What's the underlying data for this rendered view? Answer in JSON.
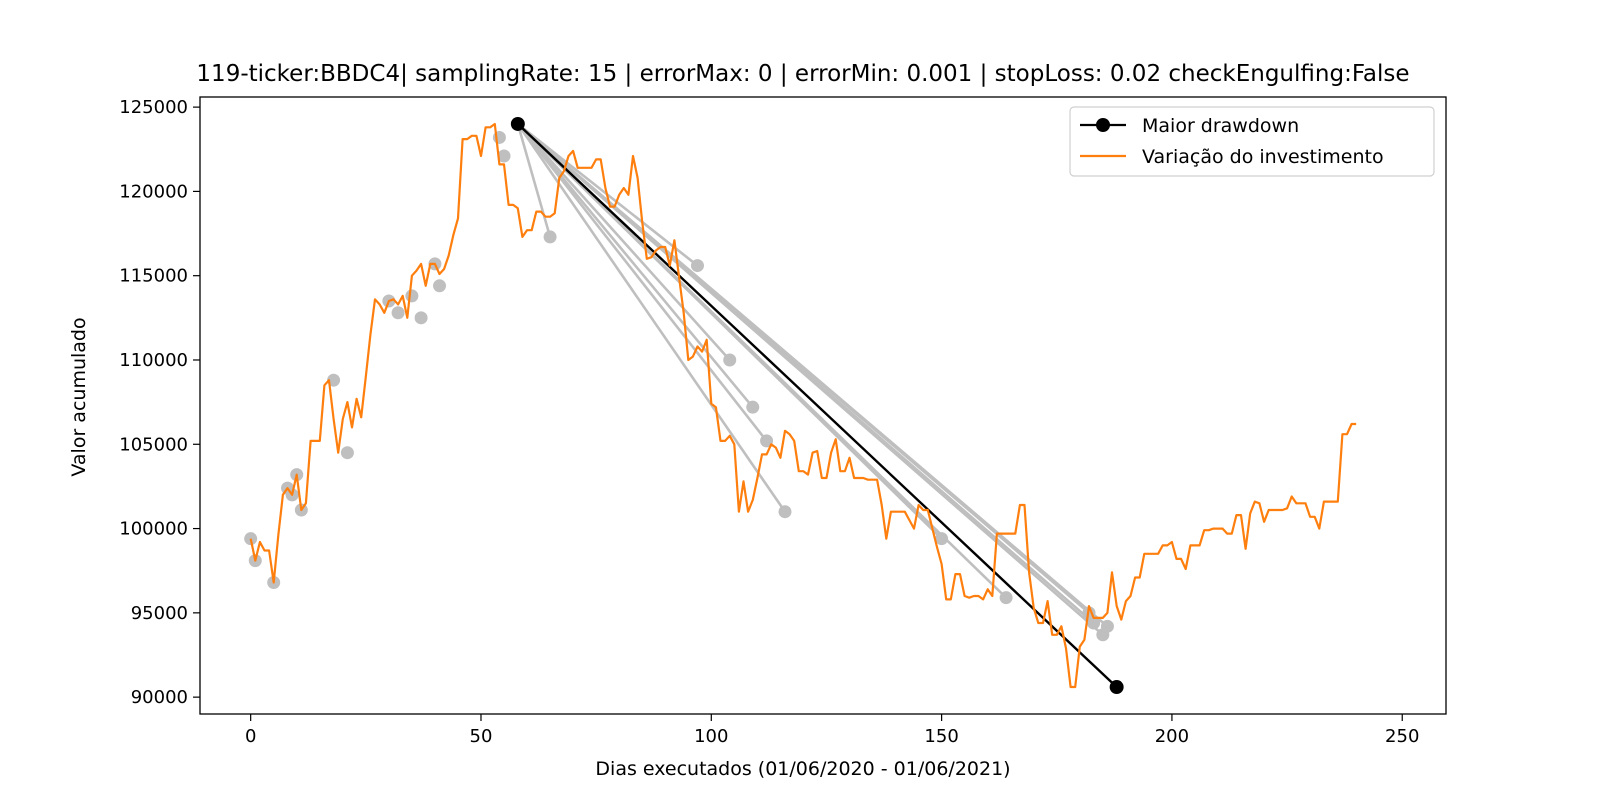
{
  "chart_data": {
    "type": "line",
    "title": "119-ticker:BBDC4| samplingRate: 15 | errorMax: 0 | errorMin: 0.001 | stopLoss: 0.02 checkEngulfing:False",
    "xlabel": "Dias executados (01/06/2020 - 01/06/2021)",
    "ylabel": "Valor acumulado",
    "xlim": [
      -11,
      259.5
    ],
    "ylim": [
      89000,
      125600
    ],
    "xticks": [
      0,
      50,
      100,
      150,
      200,
      250
    ],
    "yticks": [
      90000,
      95000,
      100000,
      105000,
      110000,
      115000,
      120000,
      125000
    ],
    "legend_position": "upper-right",
    "colors": {
      "investment": "#ff7f0e",
      "drawdown": "#000000",
      "candidates": "#bfbfbf"
    },
    "series": [
      {
        "name": "Variação do investimento",
        "points": [
          [
            0,
            99400
          ],
          [
            1,
            98100
          ],
          [
            2,
            99200
          ],
          [
            3,
            98700
          ],
          [
            4,
            98700
          ],
          [
            5,
            96800
          ],
          [
            6,
            99600
          ],
          [
            7,
            102000
          ],
          [
            8,
            102400
          ],
          [
            9,
            102000
          ],
          [
            10,
            103200
          ],
          [
            11,
            101100
          ],
          [
            12,
            101500
          ],
          [
            13,
            105200
          ],
          [
            14,
            105200
          ],
          [
            15,
            105200
          ],
          [
            16,
            108500
          ],
          [
            17,
            108800
          ],
          [
            18,
            106500
          ],
          [
            19,
            104500
          ],
          [
            20,
            106500
          ],
          [
            21,
            107500
          ],
          [
            22,
            106000
          ],
          [
            23,
            107700
          ],
          [
            24,
            106600
          ],
          [
            25,
            109000
          ],
          [
            26,
            111500
          ],
          [
            27,
            113600
          ],
          [
            28,
            113300
          ],
          [
            29,
            112800
          ],
          [
            30,
            113500
          ],
          [
            31,
            113600
          ],
          [
            32,
            113300
          ],
          [
            33,
            113800
          ],
          [
            34,
            112500
          ],
          [
            35,
            115000
          ],
          [
            36,
            115300
          ],
          [
            37,
            115700
          ],
          [
            38,
            114400
          ],
          [
            39,
            115700
          ],
          [
            40,
            115700
          ],
          [
            41,
            115100
          ],
          [
            42,
            115400
          ],
          [
            43,
            116200
          ],
          [
            44,
            117400
          ],
          [
            45,
            118400
          ],
          [
            46,
            123100
          ],
          [
            47,
            123100
          ],
          [
            48,
            123300
          ],
          [
            49,
            123300
          ],
          [
            50,
            122100
          ],
          [
            51,
            123800
          ],
          [
            52,
            123800
          ],
          [
            53,
            124000
          ],
          [
            54,
            121600
          ],
          [
            55,
            121600
          ],
          [
            56,
            119200
          ],
          [
            57,
            119200
          ],
          [
            58,
            119000
          ],
          [
            59,
            117300
          ],
          [
            60,
            117700
          ],
          [
            61,
            117700
          ],
          [
            62,
            118800
          ],
          [
            63,
            118800
          ],
          [
            64,
            118500
          ],
          [
            65,
            118500
          ],
          [
            66,
            118700
          ],
          [
            67,
            120800
          ],
          [
            68,
            121200
          ],
          [
            69,
            122100
          ],
          [
            70,
            122400
          ],
          [
            71,
            121400
          ],
          [
            72,
            121400
          ],
          [
            73,
            121400
          ],
          [
            74,
            121400
          ],
          [
            75,
            121900
          ],
          [
            76,
            121900
          ],
          [
            77,
            120200
          ],
          [
            78,
            119100
          ],
          [
            79,
            119100
          ],
          [
            80,
            119800
          ],
          [
            81,
            120200
          ],
          [
            82,
            119800
          ],
          [
            83,
            122100
          ],
          [
            84,
            120800
          ],
          [
            85,
            118200
          ],
          [
            86,
            116000
          ],
          [
            87,
            116100
          ],
          [
            88,
            116500
          ],
          [
            89,
            116700
          ],
          [
            90,
            116700
          ],
          [
            91,
            115600
          ],
          [
            92,
            117100
          ],
          [
            93,
            114900
          ],
          [
            94,
            112800
          ],
          [
            95,
            110000
          ],
          [
            96,
            110200
          ],
          [
            97,
            110800
          ],
          [
            98,
            110500
          ],
          [
            99,
            111200
          ],
          [
            100,
            107400
          ],
          [
            101,
            107200
          ],
          [
            102,
            105200
          ],
          [
            103,
            105200
          ],
          [
            104,
            105500
          ],
          [
            105,
            105000
          ],
          [
            106,
            101000
          ],
          [
            107,
            102800
          ],
          [
            108,
            101000
          ],
          [
            109,
            101700
          ],
          [
            110,
            103000
          ],
          [
            111,
            104400
          ],
          [
            112,
            104400
          ],
          [
            113,
            105000
          ],
          [
            114,
            104800
          ],
          [
            115,
            104200
          ],
          [
            116,
            105800
          ],
          [
            117,
            105600
          ],
          [
            118,
            105200
          ],
          [
            119,
            103400
          ],
          [
            120,
            103400
          ],
          [
            121,
            103200
          ],
          [
            122,
            104500
          ],
          [
            123,
            104600
          ],
          [
            124,
            103000
          ],
          [
            125,
            103000
          ],
          [
            126,
            104500
          ],
          [
            127,
            105300
          ],
          [
            128,
            103400
          ],
          [
            129,
            103400
          ],
          [
            130,
            104200
          ],
          [
            131,
            103000
          ],
          [
            132,
            103000
          ],
          [
            133,
            103000
          ],
          [
            134,
            102900
          ],
          [
            135,
            102900
          ],
          [
            136,
            102900
          ],
          [
            137,
            101400
          ],
          [
            138,
            99400
          ],
          [
            139,
            101000
          ],
          [
            140,
            101000
          ],
          [
            141,
            101000
          ],
          [
            142,
            101000
          ],
          [
            143,
            100500
          ],
          [
            144,
            100000
          ],
          [
            145,
            101400
          ],
          [
            146,
            101100
          ],
          [
            147,
            101100
          ],
          [
            148,
            100000
          ],
          [
            149,
            98900
          ],
          [
            150,
            97900
          ],
          [
            151,
            95800
          ],
          [
            152,
            95800
          ],
          [
            153,
            97300
          ],
          [
            154,
            97300
          ],
          [
            155,
            96000
          ],
          [
            156,
            95900
          ],
          [
            157,
            96000
          ],
          [
            158,
            96000
          ],
          [
            159,
            95800
          ],
          [
            160,
            96400
          ],
          [
            161,
            96000
          ],
          [
            162,
            99700
          ],
          [
            163,
            99700
          ],
          [
            164,
            99700
          ],
          [
            165,
            99700
          ],
          [
            166,
            99700
          ],
          [
            167,
            101400
          ],
          [
            168,
            101400
          ],
          [
            169,
            97400
          ],
          [
            170,
            95300
          ],
          [
            171,
            94400
          ],
          [
            172,
            94400
          ],
          [
            173,
            95700
          ],
          [
            174,
            93700
          ],
          [
            175,
            93700
          ],
          [
            176,
            94200
          ],
          [
            177,
            92900
          ],
          [
            178,
            90600
          ],
          [
            179,
            90600
          ],
          [
            180,
            93000
          ],
          [
            181,
            93400
          ],
          [
            182,
            95400
          ],
          [
            183,
            94700
          ],
          [
            184,
            94700
          ],
          [
            185,
            94700
          ],
          [
            186,
            95000
          ],
          [
            187,
            97400
          ],
          [
            188,
            95400
          ],
          [
            189,
            94600
          ],
          [
            190,
            95700
          ],
          [
            191,
            96000
          ],
          [
            192,
            97100
          ],
          [
            193,
            97100
          ],
          [
            194,
            98500
          ],
          [
            195,
            98500
          ],
          [
            196,
            98500
          ],
          [
            197,
            98500
          ],
          [
            198,
            99000
          ],
          [
            199,
            99000
          ],
          [
            200,
            99200
          ],
          [
            201,
            98200
          ],
          [
            202,
            98200
          ],
          [
            203,
            97600
          ],
          [
            204,
            99000
          ],
          [
            205,
            99000
          ],
          [
            206,
            99000
          ],
          [
            207,
            99900
          ],
          [
            208,
            99900
          ],
          [
            209,
            100000
          ],
          [
            210,
            100000
          ],
          [
            211,
            100000
          ],
          [
            212,
            99700
          ],
          [
            213,
            99700
          ],
          [
            214,
            100800
          ],
          [
            215,
            100800
          ],
          [
            216,
            98800
          ],
          [
            217,
            100900
          ],
          [
            218,
            101600
          ],
          [
            219,
            101500
          ],
          [
            220,
            100400
          ],
          [
            221,
            101100
          ],
          [
            222,
            101100
          ],
          [
            223,
            101100
          ],
          [
            224,
            101100
          ],
          [
            225,
            101200
          ],
          [
            226,
            101900
          ],
          [
            227,
            101500
          ],
          [
            228,
            101500
          ],
          [
            229,
            101500
          ],
          [
            230,
            100700
          ],
          [
            231,
            100700
          ],
          [
            232,
            100000
          ],
          [
            233,
            101600
          ],
          [
            234,
            101600
          ],
          [
            235,
            101600
          ],
          [
            236,
            101600
          ],
          [
            237,
            105600
          ],
          [
            238,
            105600
          ],
          [
            239,
            106200
          ],
          [
            240,
            106200
          ]
        ]
      },
      {
        "name": "Maior drawdown",
        "points": [
          [
            58,
            124000
          ],
          [
            188,
            90600
          ]
        ]
      }
    ],
    "candidate_markers": [
      [
        0,
        99400
      ],
      [
        1,
        98100
      ],
      [
        5,
        96800
      ],
      [
        8,
        102400
      ],
      [
        9,
        102000
      ],
      [
        10,
        103200
      ],
      [
        11,
        101100
      ],
      [
        18,
        108800
      ],
      [
        21,
        104500
      ],
      [
        30,
        113500
      ],
      [
        32,
        112800
      ],
      [
        35,
        113800
      ],
      [
        37,
        112500
      ],
      [
        40,
        115700
      ],
      [
        41,
        114400
      ],
      [
        54,
        123200
      ],
      [
        55,
        122100
      ],
      [
        65,
        117300
      ],
      [
        97,
        115600
      ],
      [
        104,
        110000
      ],
      [
        109,
        107200
      ],
      [
        112,
        105200
      ],
      [
        116,
        101000
      ],
      [
        150,
        99400
      ],
      [
        164,
        95900
      ],
      [
        182,
        95000
      ],
      [
        183,
        94400
      ],
      [
        185,
        93700
      ],
      [
        186,
        94200
      ]
    ],
    "candidate_lines_from": [
      58,
      124000
    ],
    "candidate_lines_to": [
      [
        65,
        117300
      ],
      [
        97,
        115600
      ],
      [
        104,
        110000
      ],
      [
        109,
        107200
      ],
      [
        112,
        105200
      ],
      [
        116,
        101000
      ],
      [
        150,
        99400
      ],
      [
        164,
        95900
      ],
      [
        182,
        95000
      ],
      [
        183,
        94400
      ],
      [
        185,
        93700
      ],
      [
        186,
        94200
      ]
    ]
  }
}
